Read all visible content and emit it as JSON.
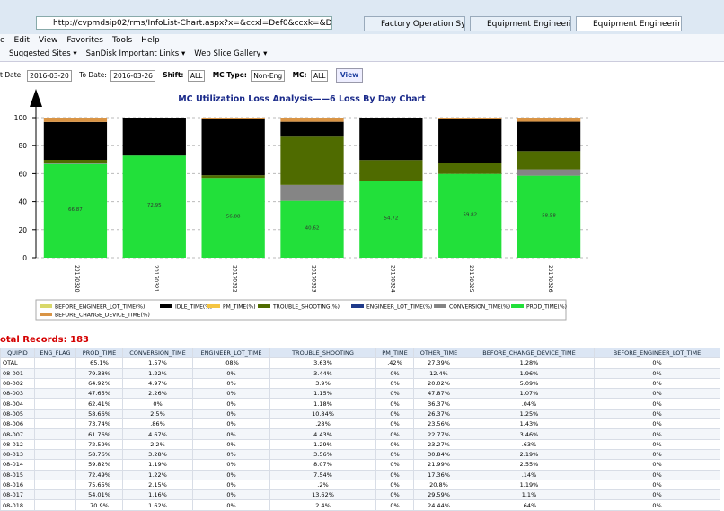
{
  "browser": {
    "url": "http://cvpmdsip02/rms/InfoList-Chart.aspx?x=&ccxl=Def0&ccxk=&Dept=ALL-DA&WORK_",
    "tabs": [
      "Factory Operation System",
      "Equipment Engineering R...",
      "Equipment Engineering..."
    ]
  },
  "menu": [
    "e",
    "Edit",
    "View",
    "Favorites",
    "Tools",
    "Help"
  ],
  "favorites": [
    "Suggested Sites ▾",
    "SanDisk Important Links ▾",
    "Web Slice Gallery ▾"
  ],
  "filters": {
    "from_label": "t Date:",
    "from": "2016-03-20",
    "to_label": "To Date:",
    "to": "2016-03-26",
    "shift_label": "Shift:",
    "shift": "ALL",
    "mctype_label": "MC Type:",
    "mctype": "Non-Eng",
    "mc_label": "MC:",
    "mc": "ALL",
    "button": "View"
  },
  "chart_data": {
    "type": "bar",
    "stacked": true,
    "title": "MC Utilization Loss Analysis——6 Loss By Day Chart",
    "categories": [
      "20170320",
      "20170321",
      "20170322",
      "20170323",
      "20170324",
      "20170325",
      "20170326"
    ],
    "ylim": [
      0,
      100
    ],
    "yticks": [
      0,
      20,
      40,
      60,
      80,
      100
    ],
    "grid": true,
    "legend": "bottom",
    "series": [
      {
        "name": "BEFORE_ENGINEER_LOT_TIME(%)",
        "color": "#d8d86a",
        "values": [
          0,
          0,
          0,
          0,
          0,
          0,
          0
        ]
      },
      {
        "name": "IDLE_TIME(%)",
        "color": "#000000",
        "values": [
          27,
          27.05,
          40.12,
          10,
          30.28,
          31,
          21
        ]
      },
      {
        "name": "PM_TIME(%)",
        "color": "#f5c542",
        "values": [
          0,
          0,
          0,
          0,
          0,
          0,
          0
        ]
      },
      {
        "name": "TROUBLE_SHOOTING(%)",
        "color": "#4f6b00",
        "values": [
          2,
          0,
          2,
          35,
          15,
          8,
          13
        ]
      },
      {
        "name": "ENGINEER_LOT_TIME(%)",
        "color": "#1f3a8a",
        "values": [
          0,
          0,
          0,
          0,
          0,
          0,
          0
        ]
      },
      {
        "name": "CONVERSION_TIME(%)",
        "color": "#858585",
        "values": [
          1,
          0,
          0,
          11.4,
          0,
          0,
          4.5
        ]
      },
      {
        "name": "PROD_TIME(%)",
        "color": "#22e03a",
        "values": [
          66.87,
          72.95,
          56.88,
          40.62,
          54.72,
          59.82,
          58.58
        ]
      },
      {
        "name": "BEFORE_CHANGE_DEVICE_TIME(%)",
        "color": "#d99445",
        "values": [
          3.13,
          0,
          1,
          2.98,
          0,
          1.18,
          2.92
        ]
      }
    ]
  },
  "records": "otal Records: 183",
  "table": {
    "columns": [
      "QUIPID",
      "ENG_FLAG",
      "PROD_TIME",
      "CONVERSION_TIME",
      "ENGINEER_LOT_TIME",
      "TROUBLE_SHOOTING",
      "PM_TIME",
      "OTHER_TIME",
      "BEFORE_CHANGE_DEVICE_TIME",
      "BEFORE_ENGINEER_LOT_TIME"
    ],
    "rows": [
      {
        "equip": "OTAL",
        "cells": [
          "65.1%",
          "1.57%",
          ".08%",
          "3.63%",
          ".42%",
          "27.39%",
          "1.28%",
          "0%"
        ]
      },
      {
        "equip": "08-001",
        "cells": [
          "79.38%",
          "1.22%",
          "0%",
          "3.44%",
          "0%",
          "12.4%",
          "1.96%",
          "0%"
        ]
      },
      {
        "equip": "08-002",
        "cells": [
          "64.92%",
          "4.97%",
          "0%",
          "3.9%",
          "0%",
          "20.02%",
          "5.09%",
          "0%"
        ]
      },
      {
        "equip": "08-003",
        "cells": [
          "47.65%",
          "2.26%",
          "0%",
          "1.15%",
          "0%",
          "47.87%",
          "1.07%",
          "0%"
        ]
      },
      {
        "equip": "08-004",
        "cells": [
          "62.41%",
          "0%",
          "0%",
          "1.18%",
          "0%",
          "36.37%",
          ".04%",
          "0%"
        ]
      },
      {
        "equip": "08-005",
        "cells": [
          "58.66%",
          "2.5%",
          "0%",
          "10.84%",
          "0%",
          "26.37%",
          "1.25%",
          "0%"
        ]
      },
      {
        "equip": "08-006",
        "cells": [
          "73.74%",
          ".86%",
          "0%",
          ".28%",
          "0%",
          "23.56%",
          "1.43%",
          "0%"
        ]
      },
      {
        "equip": "08-007",
        "cells": [
          "61.76%",
          "4.67%",
          "0%",
          "4.43%",
          "0%",
          "22.77%",
          "3.46%",
          "0%"
        ]
      },
      {
        "equip": "08-012",
        "cells": [
          "72.59%",
          "2.2%",
          "0%",
          "1.29%",
          "0%",
          "23.27%",
          ".63%",
          "0%"
        ]
      },
      {
        "equip": "08-013",
        "cells": [
          "58.76%",
          "3.28%",
          "0%",
          "3.56%",
          "0%",
          "30.84%",
          "2.19%",
          "0%"
        ]
      },
      {
        "equip": "08-014",
        "cells": [
          "59.82%",
          "1.19%",
          "0%",
          "8.07%",
          "0%",
          "21.99%",
          "2.55%",
          "0%"
        ]
      },
      {
        "equip": "08-015",
        "cells": [
          "72.49%",
          "1.22%",
          "0%",
          "7.54%",
          "0%",
          "17.36%",
          ".14%",
          "0%"
        ]
      },
      {
        "equip": "08-016",
        "cells": [
          "75.65%",
          "2.15%",
          "0%",
          ".2%",
          "0%",
          "20.8%",
          "1.19%",
          "0%"
        ]
      },
      {
        "equip": "08-017",
        "cells": [
          "54.01%",
          "1.16%",
          "0%",
          "13.62%",
          "0%",
          "29.59%",
          "1.1%",
          "0%"
        ]
      },
      {
        "equip": "08-018",
        "cells": [
          "70.9%",
          "1.62%",
          "0%",
          "2.4%",
          "0%",
          "24.44%",
          ".64%",
          "0%"
        ]
      }
    ]
  }
}
